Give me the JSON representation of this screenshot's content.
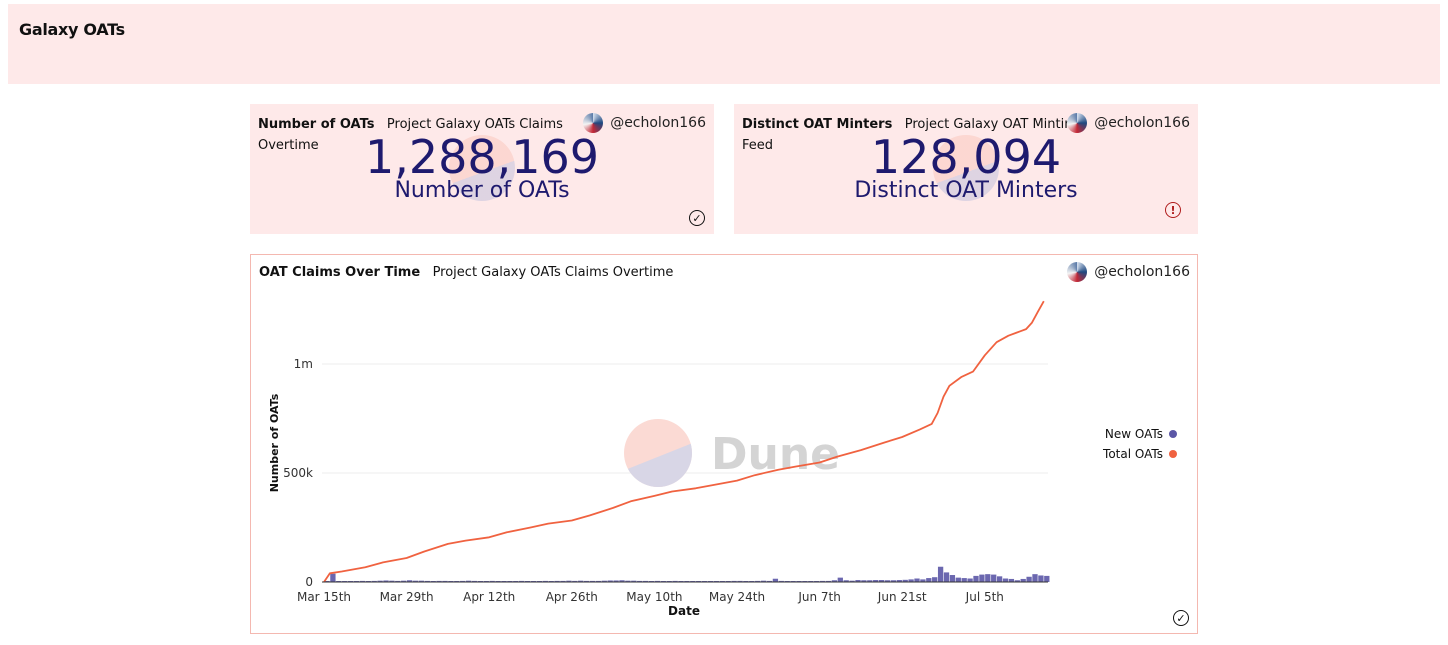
{
  "dashboard": {
    "title": "Galaxy OATs"
  },
  "counters": [
    {
      "query_title": "Number of OATs",
      "query_subtitle_1": "Project Galaxy OATs Claims",
      "query_subtitle_2": "Overtime",
      "author": "@echolon166",
      "value": "1,288,169",
      "label": "Number of OATs",
      "status_icon": "check-circle-icon"
    },
    {
      "query_title": "Distinct OAT Minters",
      "query_subtitle_1": "Project Galaxy OAT Minting",
      "query_subtitle_2": "Feed",
      "author": "@echolon166",
      "value": "128,094",
      "label": "Distinct OAT Minters",
      "status_icon": "warning-circle-icon"
    }
  ],
  "chart_card": {
    "query_title": "OAT Claims Over Time",
    "query_subtitle": "Project Galaxy OATs Claims Overtime",
    "author": "@echolon166",
    "watermark": "Dune",
    "status_icon": "check-circle-icon"
  },
  "chart_data": {
    "type": "line",
    "title": "OAT Claims Over Time",
    "xlabel": "Date",
    "ylabel": "Number of OATs",
    "ylim": [
      0,
      1300000
    ],
    "grid": true,
    "legend_position": "right",
    "y_ticks": [
      {
        "value": 0,
        "label": "0"
      },
      {
        "value": 500000,
        "label": "500k"
      },
      {
        "value": 1000000,
        "label": "1m"
      }
    ],
    "x_ticks": [
      {
        "day": 0,
        "label": "Mar 15th"
      },
      {
        "day": 14,
        "label": "Mar 29th"
      },
      {
        "day": 28,
        "label": "Apr 12th"
      },
      {
        "day": 42,
        "label": "Apr 26th"
      },
      {
        "day": 56,
        "label": "May 10th"
      },
      {
        "day": 70,
        "label": "May 24th"
      },
      {
        "day": 84,
        "label": "Jun 7th"
      },
      {
        "day": 98,
        "label": "Jun 21st"
      },
      {
        "day": 112,
        "label": "Jul 5th"
      }
    ],
    "colors": {
      "new": "#5b57a6",
      "total": "#f06240"
    },
    "series": [
      {
        "name": "New OATs",
        "type": "bar",
        "points": [
          [
            0,
            2000
          ],
          [
            1,
            38000
          ],
          [
            2,
            3000
          ],
          [
            3,
            3000
          ],
          [
            4,
            4000
          ],
          [
            5,
            4000
          ],
          [
            6,
            5000
          ],
          [
            7,
            4000
          ],
          [
            8,
            5000
          ],
          [
            9,
            6000
          ],
          [
            10,
            7000
          ],
          [
            11,
            6000
          ],
          [
            12,
            5000
          ],
          [
            13,
            6000
          ],
          [
            14,
            8000
          ],
          [
            15,
            6000
          ],
          [
            16,
            6000
          ],
          [
            17,
            5000
          ],
          [
            18,
            4000
          ],
          [
            19,
            5000
          ],
          [
            20,
            5000
          ],
          [
            21,
            4000
          ],
          [
            22,
            4000
          ],
          [
            23,
            5000
          ],
          [
            24,
            6000
          ],
          [
            25,
            5000
          ],
          [
            26,
            4000
          ],
          [
            27,
            4000
          ],
          [
            28,
            5000
          ],
          [
            29,
            4000
          ],
          [
            30,
            4000
          ],
          [
            31,
            3000
          ],
          [
            32,
            4000
          ],
          [
            33,
            5000
          ],
          [
            34,
            4000
          ],
          [
            35,
            4000
          ],
          [
            36,
            4000
          ],
          [
            37,
            5000
          ],
          [
            38,
            4000
          ],
          [
            39,
            5000
          ],
          [
            40,
            5000
          ],
          [
            41,
            6000
          ],
          [
            42,
            5000
          ],
          [
            43,
            6000
          ],
          [
            44,
            5000
          ],
          [
            45,
            5000
          ],
          [
            46,
            5000
          ],
          [
            47,
            6000
          ],
          [
            48,
            7000
          ],
          [
            49,
            7000
          ],
          [
            50,
            8000
          ],
          [
            51,
            6000
          ],
          [
            52,
            6000
          ],
          [
            53,
            5000
          ],
          [
            54,
            5000
          ],
          [
            55,
            4000
          ],
          [
            56,
            5000
          ],
          [
            57,
            4000
          ],
          [
            58,
            4000
          ],
          [
            59,
            5000
          ],
          [
            60,
            4000
          ],
          [
            61,
            3000
          ],
          [
            62,
            4000
          ],
          [
            63,
            3000
          ],
          [
            64,
            4000
          ],
          [
            65,
            3000
          ],
          [
            66,
            3000
          ],
          [
            67,
            4000
          ],
          [
            68,
            4000
          ],
          [
            69,
            5000
          ],
          [
            70,
            5000
          ],
          [
            71,
            4000
          ],
          [
            72,
            4000
          ],
          [
            73,
            5000
          ],
          [
            74,
            6000
          ],
          [
            75,
            5000
          ],
          [
            76,
            15000
          ],
          [
            77,
            5000
          ],
          [
            78,
            4000
          ],
          [
            79,
            4000
          ],
          [
            80,
            4000
          ],
          [
            81,
            3000
          ],
          [
            82,
            3000
          ],
          [
            83,
            4000
          ],
          [
            84,
            5000
          ],
          [
            85,
            5000
          ],
          [
            86,
            8000
          ],
          [
            87,
            20000
          ],
          [
            88,
            8000
          ],
          [
            89,
            6000
          ],
          [
            90,
            9000
          ],
          [
            91,
            8000
          ],
          [
            92,
            8000
          ],
          [
            93,
            9000
          ],
          [
            94,
            9000
          ],
          [
            95,
            8000
          ],
          [
            96,
            8000
          ],
          [
            97,
            9000
          ],
          [
            98,
            10000
          ],
          [
            99,
            12000
          ],
          [
            100,
            16000
          ],
          [
            101,
            12000
          ],
          [
            102,
            18000
          ],
          [
            103,
            22000
          ],
          [
            104,
            70000
          ],
          [
            105,
            44000
          ],
          [
            106,
            32000
          ],
          [
            107,
            20000
          ],
          [
            108,
            18000
          ],
          [
            109,
            16000
          ],
          [
            110,
            28000
          ],
          [
            111,
            34000
          ],
          [
            112,
            36000
          ],
          [
            113,
            34000
          ],
          [
            114,
            26000
          ],
          [
            115,
            16000
          ],
          [
            116,
            14000
          ],
          [
            117,
            8000
          ],
          [
            118,
            14000
          ],
          [
            119,
            24000
          ],
          [
            120,
            36000
          ],
          [
            121,
            30000
          ],
          [
            122,
            28000
          ]
        ]
      },
      {
        "name": "Total OATs",
        "type": "line",
        "points": [
          [
            0,
            0
          ],
          [
            1,
            40000
          ],
          [
            3,
            48000
          ],
          [
            7,
            68000
          ],
          [
            10,
            90000
          ],
          [
            14,
            110000
          ],
          [
            17,
            140000
          ],
          [
            21,
            175000
          ],
          [
            24,
            190000
          ],
          [
            28,
            205000
          ],
          [
            31,
            228000
          ],
          [
            35,
            250000
          ],
          [
            38,
            268000
          ],
          [
            42,
            282000
          ],
          [
            45,
            305000
          ],
          [
            49,
            340000
          ],
          [
            52,
            370000
          ],
          [
            56,
            395000
          ],
          [
            59,
            415000
          ],
          [
            63,
            430000
          ],
          [
            66,
            445000
          ],
          [
            70,
            465000
          ],
          [
            73,
            490000
          ],
          [
            77,
            515000
          ],
          [
            80,
            530000
          ],
          [
            84,
            548000
          ],
          [
            87,
            575000
          ],
          [
            91,
            605000
          ],
          [
            95,
            640000
          ],
          [
            98,
            665000
          ],
          [
            101,
            700000
          ],
          [
            103,
            725000
          ],
          [
            104,
            775000
          ],
          [
            105,
            850000
          ],
          [
            106,
            900000
          ],
          [
            108,
            940000
          ],
          [
            110,
            965000
          ],
          [
            112,
            1040000
          ],
          [
            114,
            1100000
          ],
          [
            116,
            1130000
          ],
          [
            118,
            1150000
          ],
          [
            119,
            1160000
          ],
          [
            120,
            1190000
          ],
          [
            121,
            1240000
          ],
          [
            122,
            1288169
          ]
        ]
      }
    ]
  }
}
